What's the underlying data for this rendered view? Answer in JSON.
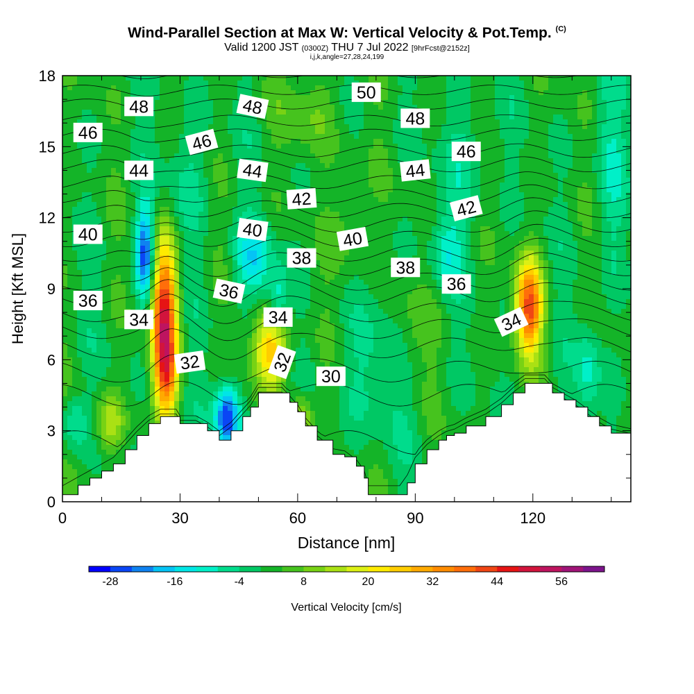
{
  "header": {
    "title": "Wind-Parallel Section at Max W: Vertical Velocity & Pot.Temp.",
    "copyright": "(C)",
    "subtitle_a": "Valid 1200 JST",
    "subtitle_b": "(0300Z)",
    "subtitle_c": "THU 7 Jul 2022",
    "subtitle_d": "[9hrFcst@2152z]",
    "params": "i,j,k,angle=27,28,24,199"
  },
  "chart_data": {
    "type": "heatmap",
    "xlabel": "Distance [nm]",
    "ylabel": "Height [Kft MSL]",
    "xlim": [
      0,
      145
    ],
    "ylim": [
      0,
      18
    ],
    "x_ticks": [
      0,
      30,
      60,
      90,
      120
    ],
    "y_ticks": [
      0,
      3,
      6,
      9,
      12,
      15,
      18
    ],
    "colorbar": {
      "label": "Vertical Velocity [cm/s]",
      "tick_values": [
        -28,
        -16,
        -4,
        8,
        20,
        32,
        44,
        56
      ],
      "tick_labels": [
        "-28",
        "-16",
        "-4",
        "8",
        "20",
        "32",
        "44",
        "56"
      ],
      "min": -32,
      "max": 64,
      "step": 4,
      "colors": [
        "#0000ff",
        "#0a46f5",
        "#0f82f0",
        "#05c3f5",
        "#00e6e6",
        "#00f0c8",
        "#00dc8c",
        "#00c864",
        "#14b428",
        "#46c31e",
        "#78d214",
        "#aae114",
        "#dcf014",
        "#ffeb00",
        "#ffcd00",
        "#ffaa00",
        "#ff8c00",
        "#ff6e0a",
        "#f04614",
        "#e61414",
        "#d2143c",
        "#be145f",
        "#a01478",
        "#7d148c"
      ]
    },
    "terrain_kft": [
      [
        0,
        0.3
      ],
      [
        4,
        0.7
      ],
      [
        7,
        1.0
      ],
      [
        10,
        1.3
      ],
      [
        13,
        1.6
      ],
      [
        16,
        2.2
      ],
      [
        19,
        2.8
      ],
      [
        22,
        3.3
      ],
      [
        25,
        3.6
      ],
      [
        29,
        3.6
      ],
      [
        30,
        3.3
      ],
      [
        34,
        3.3
      ],
      [
        37,
        3.0
      ],
      [
        40,
        2.6
      ],
      [
        43,
        3.0
      ],
      [
        46,
        3.6
      ],
      [
        48,
        4.0
      ],
      [
        50,
        4.6
      ],
      [
        56,
        4.6
      ],
      [
        58,
        4.2
      ],
      [
        60,
        3.8
      ],
      [
        62,
        3.2
      ],
      [
        65,
        2.6
      ],
      [
        69,
        2.0
      ],
      [
        72,
        1.9
      ],
      [
        75,
        1.5
      ],
      [
        77,
        1.0
      ],
      [
        78,
        0.3
      ],
      [
        82,
        0.3
      ],
      [
        86,
        0.3
      ],
      [
        88,
        0.8
      ],
      [
        90,
        1.6
      ],
      [
        93,
        2.2
      ],
      [
        96,
        2.6
      ],
      [
        98,
        2.8
      ],
      [
        100,
        2.9
      ],
      [
        103,
        3.2
      ],
      [
        108,
        3.6
      ],
      [
        112,
        4.1
      ],
      [
        115,
        4.6
      ],
      [
        118,
        5.0
      ],
      [
        123,
        5.0
      ],
      [
        125,
        4.6
      ],
      [
        128,
        4.3
      ],
      [
        131,
        4.0
      ],
      [
        134,
        3.6
      ],
      [
        137,
        3.2
      ],
      [
        140,
        2.9
      ],
      [
        145,
        2.7
      ]
    ],
    "w_cells": [
      {
        "x": 26,
        "y": 7.5,
        "sx": 2.2,
        "sy": 2.4,
        "w": 50
      },
      {
        "x": 27,
        "y": 5.2,
        "sx": 1.8,
        "sy": 0.9,
        "w": 12
      },
      {
        "x": 21,
        "y": 10.5,
        "sx": 1.6,
        "sy": 1.4,
        "w": -26
      },
      {
        "x": 53,
        "y": 6.4,
        "sx": 3.2,
        "sy": 1.1,
        "w": 26
      },
      {
        "x": 119,
        "y": 8.2,
        "sx": 2.4,
        "sy": 1.4,
        "w": 40
      },
      {
        "x": 48.5,
        "y": 10.2,
        "sx": 3.5,
        "sy": 1.1,
        "w": -14
      },
      {
        "x": 42,
        "y": 3.6,
        "sx": 2.2,
        "sy": 0.9,
        "w": -30
      },
      {
        "x": 55,
        "y": 8.4,
        "sx": 1.8,
        "sy": 1.0,
        "w": -12
      },
      {
        "x": 98,
        "y": 10.5,
        "sx": 3.0,
        "sy": 1.2,
        "w": -10
      },
      {
        "x": 134,
        "y": 5.5,
        "sx": 2.2,
        "sy": 1.4,
        "w": -10
      },
      {
        "x": 3,
        "y": 3.3,
        "sx": 2.0,
        "sy": 0.8,
        "w": -10
      },
      {
        "x": 12,
        "y": 3.3,
        "sx": 2.5,
        "sy": 0.8,
        "w": 14
      },
      {
        "x": 61,
        "y": 3.4,
        "sx": 2.0,
        "sy": 0.8,
        "w": 16
      },
      {
        "x": 31,
        "y": 13.5,
        "sx": 4.0,
        "sy": 2.0,
        "w": -6
      },
      {
        "x": 80,
        "y": 5.5,
        "sx": 6.0,
        "sy": 2.0,
        "w": -7
      },
      {
        "x": 103,
        "y": 14.5,
        "sx": 4.0,
        "sy": 1.8,
        "w": -6
      },
      {
        "x": 63,
        "y": 16.5,
        "sx": 5.0,
        "sy": 1.2,
        "w": 7
      },
      {
        "x": 88,
        "y": 7.0,
        "sx": 4.0,
        "sy": 1.5,
        "w": 6
      },
      {
        "x": 140,
        "y": 14.0,
        "sx": 3.0,
        "sy": 3.0,
        "w": -7
      },
      {
        "x": 73,
        "y": 12.0,
        "sx": 3.0,
        "sy": 2.0,
        "w": 6
      }
    ],
    "isentropes": {
      "min": 28,
      "max": 52,
      "step": 1,
      "bases": [
        [
          0,
          28
        ],
        [
          2.5,
          29
        ],
        [
          4.5,
          30
        ],
        [
          5.5,
          31
        ],
        [
          6.5,
          32
        ],
        [
          7.3,
          33
        ],
        [
          8,
          34
        ],
        [
          8.7,
          35
        ],
        [
          9.3,
          36
        ],
        [
          9.9,
          37
        ],
        [
          10.5,
          38
        ],
        [
          11.1,
          39
        ],
        [
          11.7,
          40
        ],
        [
          12.3,
          41
        ],
        [
          12.9,
          42
        ],
        [
          13.5,
          43
        ],
        [
          14.2,
          44
        ],
        [
          14.8,
          45
        ],
        [
          15.5,
          46
        ],
        [
          16.1,
          47
        ],
        [
          16.8,
          48
        ],
        [
          17.4,
          49
        ],
        [
          18.1,
          50
        ],
        [
          18.8,
          51
        ]
      ]
    },
    "contour_labels": [
      {
        "text": "48",
        "x": 19.5,
        "y": 16.7,
        "rot": 0
      },
      {
        "text": "48",
        "x": 48.5,
        "y": 16.7,
        "rot": 12
      },
      {
        "text": "50",
        "x": 77.5,
        "y": 17.3,
        "rot": 0
      },
      {
        "text": "48",
        "x": 90,
        "y": 16.2,
        "rot": 0
      },
      {
        "text": "46",
        "x": 6.5,
        "y": 15.6,
        "rot": 0
      },
      {
        "text": "46",
        "x": 35.5,
        "y": 15.2,
        "rot": -15
      },
      {
        "text": "46",
        "x": 103,
        "y": 14.8,
        "rot": 0
      },
      {
        "text": "44",
        "x": 19.5,
        "y": 14.0,
        "rot": 0
      },
      {
        "text": "44",
        "x": 48.5,
        "y": 14.0,
        "rot": 8
      },
      {
        "text": "44",
        "x": 90,
        "y": 14.0,
        "rot": -6
      },
      {
        "text": "42",
        "x": 61,
        "y": 12.8,
        "rot": -4
      },
      {
        "text": "42",
        "x": 103,
        "y": 12.4,
        "rot": -15
      },
      {
        "text": "40",
        "x": 6.5,
        "y": 11.3,
        "rot": 0
      },
      {
        "text": "40",
        "x": 48.5,
        "y": 11.5,
        "rot": 8
      },
      {
        "text": "40",
        "x": 74,
        "y": 11.1,
        "rot": -10
      },
      {
        "text": "38",
        "x": 61,
        "y": 10.3,
        "rot": 0
      },
      {
        "text": "38",
        "x": 87.5,
        "y": 9.9,
        "rot": 0
      },
      {
        "text": "36",
        "x": 6.5,
        "y": 8.5,
        "rot": 0
      },
      {
        "text": "36",
        "x": 42.5,
        "y": 8.9,
        "rot": 12
      },
      {
        "text": "36",
        "x": 100.5,
        "y": 9.2,
        "rot": 0
      },
      {
        "text": "34",
        "x": 19.5,
        "y": 7.7,
        "rot": 0
      },
      {
        "text": "34",
        "x": 55,
        "y": 7.8,
        "rot": 0
      },
      {
        "text": "34",
        "x": 114.5,
        "y": 7.6,
        "rot": -25
      },
      {
        "text": "32",
        "x": 32.5,
        "y": 5.9,
        "rot": -8
      },
      {
        "text": "32",
        "x": 56,
        "y": 5.9,
        "rot": -70
      },
      {
        "text": "30",
        "x": 68.5,
        "y": 5.3,
        "rot": 0
      }
    ]
  }
}
